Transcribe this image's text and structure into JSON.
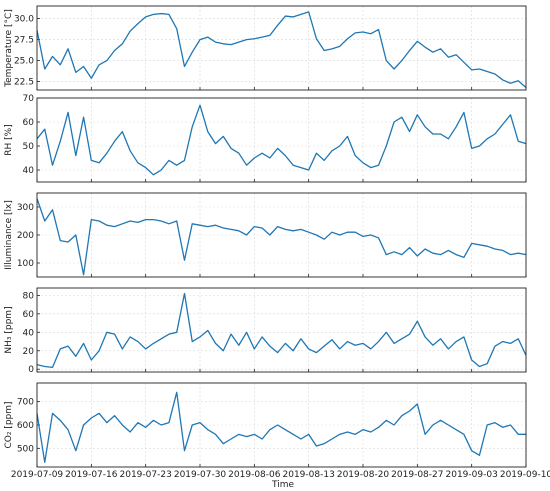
{
  "chart_data": [
    {
      "type": "line",
      "ylabel": "Temperature [°C]",
      "ylim": [
        21.5,
        31.5
      ],
      "yticks": [
        "22.5",
        "25.0",
        "27.5",
        "30.0"
      ],
      "ytick_values": [
        22.5,
        25.0,
        27.5,
        30.0
      ],
      "grid": true,
      "color": "#1f77b4",
      "x": [
        "2019-07-09",
        "2019-07-10",
        "2019-07-11",
        "2019-07-12",
        "2019-07-13",
        "2019-07-14",
        "2019-07-15",
        "2019-07-16",
        "2019-07-17",
        "2019-07-18",
        "2019-07-19",
        "2019-07-20",
        "2019-07-21",
        "2019-07-22",
        "2019-07-23",
        "2019-07-24",
        "2019-07-25",
        "2019-07-26",
        "2019-07-27",
        "2019-07-28",
        "2019-07-29",
        "2019-07-30",
        "2019-07-31",
        "2019-08-01",
        "2019-08-02",
        "2019-08-03",
        "2019-08-04",
        "2019-08-05",
        "2019-08-06",
        "2019-08-07",
        "2019-08-08",
        "2019-08-09",
        "2019-08-10",
        "2019-08-11",
        "2019-08-12",
        "2019-08-13",
        "2019-08-14",
        "2019-08-15",
        "2019-08-16",
        "2019-08-17",
        "2019-08-18",
        "2019-08-19",
        "2019-08-20",
        "2019-08-21",
        "2019-08-22",
        "2019-08-23",
        "2019-08-24",
        "2019-08-25",
        "2019-08-26",
        "2019-08-27",
        "2019-08-28",
        "2019-08-29",
        "2019-08-30",
        "2019-08-31",
        "2019-09-01",
        "2019-09-02",
        "2019-09-03",
        "2019-09-04",
        "2019-09-05",
        "2019-09-06",
        "2019-09-07",
        "2019-09-08",
        "2019-09-09",
        "2019-09-10"
      ],
      "values": [
        28.6,
        24.0,
        25.5,
        24.5,
        26.4,
        23.6,
        24.3,
        22.9,
        24.5,
        25.0,
        26.2,
        27.0,
        28.5,
        29.4,
        30.2,
        30.5,
        30.6,
        30.5,
        28.8,
        24.3,
        26.0,
        27.5,
        27.8,
        27.2,
        27.0,
        26.9,
        27.2,
        27.5,
        27.6,
        27.8,
        28.0,
        29.2,
        30.3,
        30.2,
        30.5,
        30.8,
        27.6,
        26.2,
        26.4,
        26.7,
        27.6,
        28.3,
        28.4,
        28.2,
        28.7,
        25.0,
        24.0,
        25.0,
        26.2,
        27.3,
        26.6,
        26.0,
        26.4,
        25.4,
        25.7,
        24.8,
        23.9,
        24.0,
        23.7,
        23.4,
        22.7,
        22.3,
        22.6,
        21.8
      ]
    },
    {
      "type": "line",
      "ylabel": "RH [%]",
      "ylim": [
        35,
        70
      ],
      "yticks": [
        "40",
        "50",
        "60",
        "70"
      ],
      "ytick_values": [
        40,
        50,
        60,
        70
      ],
      "grid": true,
      "color": "#1f77b4",
      "x": [
        "2019-07-09",
        "2019-07-10",
        "2019-07-11",
        "2019-07-12",
        "2019-07-13",
        "2019-07-14",
        "2019-07-15",
        "2019-07-16",
        "2019-07-17",
        "2019-07-18",
        "2019-07-19",
        "2019-07-20",
        "2019-07-21",
        "2019-07-22",
        "2019-07-23",
        "2019-07-24",
        "2019-07-25",
        "2019-07-26",
        "2019-07-27",
        "2019-07-28",
        "2019-07-29",
        "2019-07-30",
        "2019-07-31",
        "2019-08-01",
        "2019-08-02",
        "2019-08-03",
        "2019-08-04",
        "2019-08-05",
        "2019-08-06",
        "2019-08-07",
        "2019-08-08",
        "2019-08-09",
        "2019-08-10",
        "2019-08-11",
        "2019-08-12",
        "2019-08-13",
        "2019-08-14",
        "2019-08-15",
        "2019-08-16",
        "2019-08-17",
        "2019-08-18",
        "2019-08-19",
        "2019-08-20",
        "2019-08-21",
        "2019-08-22",
        "2019-08-23",
        "2019-08-24",
        "2019-08-25",
        "2019-08-26",
        "2019-08-27",
        "2019-08-28",
        "2019-08-29",
        "2019-08-30",
        "2019-08-31",
        "2019-09-01",
        "2019-09-02",
        "2019-09-03",
        "2019-09-04",
        "2019-09-05",
        "2019-09-06",
        "2019-09-07",
        "2019-09-08",
        "2019-09-09",
        "2019-09-10"
      ],
      "values": [
        53,
        57,
        42,
        52,
        64,
        46,
        62,
        44,
        43,
        47,
        52,
        56,
        48,
        43,
        41,
        38,
        40,
        44,
        42,
        44,
        58,
        67,
        56,
        51,
        54,
        49,
        47,
        42,
        45,
        47,
        45,
        49,
        46,
        42,
        41,
        40,
        47,
        44,
        48,
        50,
        54,
        46,
        43,
        41,
        42,
        50,
        60,
        62,
        56,
        63,
        58,
        55,
        55,
        53,
        58,
        64,
        49,
        50,
        53,
        55,
        59,
        63,
        52,
        51
      ]
    },
    {
      "type": "line",
      "ylabel": "Illuminance [lx]",
      "ylim": [
        50,
        350
      ],
      "yticks": [
        "100",
        "200",
        "300"
      ],
      "ytick_values": [
        100,
        200,
        300
      ],
      "grid": true,
      "color": "#1f77b4",
      "x": [
        "2019-07-09",
        "2019-07-10",
        "2019-07-11",
        "2019-07-12",
        "2019-07-13",
        "2019-07-14",
        "2019-07-15",
        "2019-07-16",
        "2019-07-17",
        "2019-07-18",
        "2019-07-19",
        "2019-07-20",
        "2019-07-21",
        "2019-07-22",
        "2019-07-23",
        "2019-07-24",
        "2019-07-25",
        "2019-07-26",
        "2019-07-27",
        "2019-07-28",
        "2019-07-29",
        "2019-07-30",
        "2019-07-31",
        "2019-08-01",
        "2019-08-02",
        "2019-08-03",
        "2019-08-04",
        "2019-08-05",
        "2019-08-06",
        "2019-08-07",
        "2019-08-08",
        "2019-08-09",
        "2019-08-10",
        "2019-08-11",
        "2019-08-12",
        "2019-08-13",
        "2019-08-14",
        "2019-08-15",
        "2019-08-16",
        "2019-08-17",
        "2019-08-18",
        "2019-08-19",
        "2019-08-20",
        "2019-08-21",
        "2019-08-22",
        "2019-08-23",
        "2019-08-24",
        "2019-08-25",
        "2019-08-26",
        "2019-08-27",
        "2019-08-28",
        "2019-08-29",
        "2019-08-30",
        "2019-08-31",
        "2019-09-01",
        "2019-09-02",
        "2019-09-03",
        "2019-09-04",
        "2019-09-05",
        "2019-09-06",
        "2019-09-07",
        "2019-09-08",
        "2019-09-09",
        "2019-09-10"
      ],
      "values": [
        330,
        250,
        290,
        180,
        175,
        200,
        58,
        255,
        250,
        235,
        230,
        240,
        250,
        245,
        255,
        255,
        250,
        240,
        250,
        110,
        240,
        235,
        230,
        235,
        225,
        220,
        215,
        200,
        230,
        225,
        200,
        230,
        220,
        215,
        220,
        210,
        200,
        185,
        210,
        200,
        210,
        210,
        195,
        200,
        190,
        130,
        140,
        130,
        155,
        125,
        150,
        135,
        130,
        145,
        130,
        120,
        170,
        165,
        160,
        150,
        145,
        130,
        135,
        130
      ]
    },
    {
      "type": "line",
      "ylabel": "NH₃ [ppm]",
      "ylim": [
        -3,
        88
      ],
      "yticks": [
        "0",
        "20",
        "40",
        "60",
        "80"
      ],
      "ytick_values": [
        0,
        20,
        40,
        60,
        80
      ],
      "grid": true,
      "color": "#1f77b4",
      "x": [
        "2019-07-09",
        "2019-07-10",
        "2019-07-11",
        "2019-07-12",
        "2019-07-13",
        "2019-07-14",
        "2019-07-15",
        "2019-07-16",
        "2019-07-17",
        "2019-07-18",
        "2019-07-19",
        "2019-07-20",
        "2019-07-21",
        "2019-07-22",
        "2019-07-23",
        "2019-07-24",
        "2019-07-25",
        "2019-07-26",
        "2019-07-27",
        "2019-07-28",
        "2019-07-29",
        "2019-07-30",
        "2019-07-31",
        "2019-08-01",
        "2019-08-02",
        "2019-08-03",
        "2019-08-04",
        "2019-08-05",
        "2019-08-06",
        "2019-08-07",
        "2019-08-08",
        "2019-08-09",
        "2019-08-10",
        "2019-08-11",
        "2019-08-12",
        "2019-08-13",
        "2019-08-14",
        "2019-08-15",
        "2019-08-16",
        "2019-08-17",
        "2019-08-18",
        "2019-08-19",
        "2019-08-20",
        "2019-08-21",
        "2019-08-22",
        "2019-08-23",
        "2019-08-24",
        "2019-08-25",
        "2019-08-26",
        "2019-08-27",
        "2019-08-28",
        "2019-08-29",
        "2019-08-30",
        "2019-08-31",
        "2019-09-01",
        "2019-09-02",
        "2019-09-03",
        "2019-09-04",
        "2019-09-05",
        "2019-09-06",
        "2019-09-07",
        "2019-09-08",
        "2019-09-09",
        "2019-09-10"
      ],
      "values": [
        5,
        3,
        2,
        22,
        25,
        14,
        28,
        10,
        20,
        40,
        38,
        22,
        35,
        30,
        22,
        28,
        33,
        38,
        40,
        82,
        30,
        35,
        42,
        28,
        20,
        38,
        26,
        40,
        22,
        35,
        25,
        18,
        28,
        20,
        33,
        22,
        18,
        25,
        32,
        22,
        30,
        26,
        28,
        22,
        30,
        40,
        28,
        33,
        38,
        52,
        35,
        26,
        33,
        22,
        30,
        35,
        10,
        3,
        6,
        25,
        30,
        28,
        33,
        15
      ]
    },
    {
      "type": "line",
      "ylabel": "CO₂ [ppm]",
      "ylim": [
        420,
        780
      ],
      "yticks": [
        "500",
        "600",
        "700"
      ],
      "ytick_values": [
        500,
        600,
        700
      ],
      "grid": true,
      "color": "#1f77b4",
      "x": [
        "2019-07-09",
        "2019-07-10",
        "2019-07-11",
        "2019-07-12",
        "2019-07-13",
        "2019-07-14",
        "2019-07-15",
        "2019-07-16",
        "2019-07-17",
        "2019-07-18",
        "2019-07-19",
        "2019-07-20",
        "2019-07-21",
        "2019-07-22",
        "2019-07-23",
        "2019-07-24",
        "2019-07-25",
        "2019-07-26",
        "2019-07-27",
        "2019-07-28",
        "2019-07-29",
        "2019-07-30",
        "2019-07-31",
        "2019-08-01",
        "2019-08-02",
        "2019-08-03",
        "2019-08-04",
        "2019-08-05",
        "2019-08-06",
        "2019-08-07",
        "2019-08-08",
        "2019-08-09",
        "2019-08-10",
        "2019-08-11",
        "2019-08-12",
        "2019-08-13",
        "2019-08-14",
        "2019-08-15",
        "2019-08-16",
        "2019-08-17",
        "2019-08-18",
        "2019-08-19",
        "2019-08-20",
        "2019-08-21",
        "2019-08-22",
        "2019-08-23",
        "2019-08-24",
        "2019-08-25",
        "2019-08-26",
        "2019-08-27",
        "2019-08-28",
        "2019-08-29",
        "2019-08-30",
        "2019-08-31",
        "2019-09-01",
        "2019-09-02",
        "2019-09-03",
        "2019-09-04",
        "2019-09-05",
        "2019-09-06",
        "2019-09-07",
        "2019-09-08",
        "2019-09-09",
        "2019-09-10"
      ],
      "values": [
        650,
        440,
        650,
        620,
        580,
        490,
        600,
        630,
        650,
        610,
        640,
        600,
        570,
        610,
        590,
        620,
        600,
        610,
        740,
        490,
        600,
        610,
        580,
        560,
        520,
        540,
        560,
        550,
        560,
        540,
        580,
        600,
        580,
        560,
        540,
        560,
        510,
        520,
        540,
        560,
        570,
        560,
        580,
        570,
        590,
        620,
        600,
        640,
        660,
        690,
        560,
        600,
        620,
        600,
        580,
        560,
        490,
        470,
        600,
        610,
        590,
        600,
        560,
        560
      ]
    }
  ],
  "x_ticks": [
    "2019-07-09",
    "2019-07-16",
    "2019-07-23",
    "2019-07-30",
    "2019-08-06",
    "2019-08-13",
    "2019-08-20",
    "2019-08-27",
    "2019-09-03",
    "2019-09-10"
  ],
  "x_tick_values": [
    "2019-07-09",
    "2019-07-16",
    "2019-07-23",
    "2019-07-30",
    "2019-08-06",
    "2019-08-13",
    "2019-08-20",
    "2019-08-27",
    "2019-09-03",
    "2019-09-10"
  ],
  "xlabel": "Time",
  "x_range": [
    "2019-07-09",
    "2019-09-10"
  ]
}
